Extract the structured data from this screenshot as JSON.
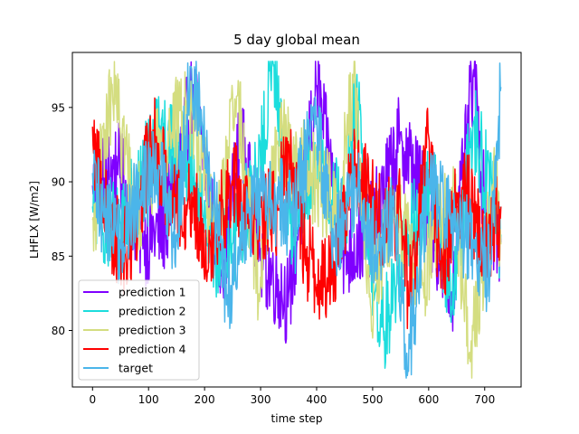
{
  "chart_data": {
    "type": "line",
    "title": "5 day global mean",
    "xlabel": "time step",
    "ylabel": "LHFLX [W/m2]",
    "xlim": [
      -36,
      765
    ],
    "ylim": [
      76.2,
      98.7
    ],
    "xticks": [
      0,
      100,
      200,
      300,
      400,
      500,
      600,
      700
    ],
    "yticks": [
      80,
      85,
      90,
      95
    ],
    "grid": false,
    "legend_position": "lower-left",
    "n_points": 730,
    "series": [
      {
        "name": "prediction 1",
        "color": "#7f00ff",
        "keypoints": [
          [
            0,
            89.5
          ],
          [
            45,
            91
          ],
          [
            90,
            86
          ],
          [
            130,
            87
          ],
          [
            180,
            96
          ],
          [
            230,
            84
          ],
          [
            265,
            93
          ],
          [
            300,
            85
          ],
          [
            350,
            82
          ],
          [
            400,
            96.5
          ],
          [
            450,
            85
          ],
          [
            500,
            87
          ],
          [
            550,
            93
          ],
          [
            600,
            88
          ],
          [
            640,
            82
          ],
          [
            680,
            97.5
          ],
          [
            700,
            88
          ],
          [
            729,
            86
          ]
        ]
      },
      {
        "name": "prediction 2",
        "color": "#1cdddd",
        "keypoints": [
          [
            0,
            88
          ],
          [
            40,
            87
          ],
          [
            80,
            89
          ],
          [
            120,
            94
          ],
          [
            170,
            91
          ],
          [
            205,
            86
          ],
          [
            230,
            85
          ],
          [
            250,
            86
          ],
          [
            295,
            90
          ],
          [
            322,
            98
          ],
          [
            360,
            86
          ],
          [
            400,
            92
          ],
          [
            450,
            87
          ],
          [
            470,
            96
          ],
          [
            512,
            79
          ],
          [
            560,
            86
          ],
          [
            610,
            90
          ],
          [
            640,
            81
          ],
          [
            680,
            94
          ],
          [
            729,
            86
          ]
        ]
      },
      {
        "name": "prediction 3",
        "color": "#d4dd80",
        "keypoints": [
          [
            0,
            87
          ],
          [
            35,
            96.2
          ],
          [
            80,
            88
          ],
          [
            125,
            93
          ],
          [
            178,
            95
          ],
          [
            220,
            86
          ],
          [
            258,
            95.7
          ],
          [
            298,
            82.5
          ],
          [
            330,
            93
          ],
          [
            400,
            90
          ],
          [
            440,
            88
          ],
          [
            465,
            97
          ],
          [
            495,
            82
          ],
          [
            540,
            88
          ],
          [
            590,
            83
          ],
          [
            610,
            87
          ],
          [
            650,
            88
          ],
          [
            672,
            78.5
          ],
          [
            720,
            90
          ],
          [
            729,
            86
          ]
        ]
      },
      {
        "name": "prediction 4",
        "color": "#ff0000",
        "keypoints": [
          [
            0,
            93.2
          ],
          [
            30,
            87
          ],
          [
            65,
            85
          ],
          [
            108,
            93
          ],
          [
            140,
            89
          ],
          [
            170,
            88.5
          ],
          [
            210,
            86
          ],
          [
            250,
            90
          ],
          [
            280,
            87
          ],
          [
            330,
            88
          ],
          [
            350,
            92.5
          ],
          [
            380,
            85
          ],
          [
            420,
            83
          ],
          [
            470,
            91
          ],
          [
            520,
            87
          ],
          [
            550,
            88
          ],
          [
            565,
            82
          ],
          [
            600,
            93.5
          ],
          [
            620,
            84
          ],
          [
            660,
            90
          ],
          [
            700,
            86
          ],
          [
            729,
            88
          ]
        ]
      },
      {
        "name": "target",
        "color": "#4bb5ea",
        "keypoints": [
          [
            0,
            90
          ],
          [
            20,
            88
          ],
          [
            50,
            86
          ],
          [
            85,
            89
          ],
          [
            120,
            91
          ],
          [
            150,
            86
          ],
          [
            175,
            97.8
          ],
          [
            210,
            90
          ],
          [
            240,
            82
          ],
          [
            280,
            88
          ],
          [
            320,
            89
          ],
          [
            355,
            88
          ],
          [
            400,
            94
          ],
          [
            430,
            86
          ],
          [
            470,
            90
          ],
          [
            510,
            85
          ],
          [
            540,
            88
          ],
          [
            562,
            77.4
          ],
          [
            600,
            90
          ],
          [
            640,
            87
          ],
          [
            680,
            86
          ],
          [
            710,
            84
          ],
          [
            729,
            96.7
          ]
        ]
      }
    ]
  }
}
